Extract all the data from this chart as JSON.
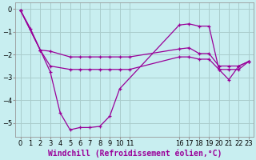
{
  "background_color": "#c8eef0",
  "line_color": "#990099",
  "grid_color": "#aacccc",
  "xlabel": "Windchill (Refroidissement éolien,°C)",
  "xlabel_fontsize": 7,
  "tick_fontsize": 6,
  "xlim": [
    -0.5,
    23.5
  ],
  "ylim": [
    -5.6,
    0.3
  ],
  "yticks": [
    0,
    -1,
    -2,
    -3,
    -4,
    -5
  ],
  "xtick_positions": [
    0,
    1,
    2,
    3,
    4,
    5,
    6,
    7,
    8,
    9,
    10,
    11,
    16,
    17,
    18,
    19,
    20,
    21,
    22,
    23
  ],
  "xtick_labels": [
    "0",
    "1",
    "2",
    "3",
    "4",
    "5",
    "6",
    "7",
    "8",
    "9",
    "10",
    "11",
    "16",
    "17",
    "18",
    "19",
    "20",
    "21",
    "22",
    "23"
  ],
  "line1_x": [
    0,
    1,
    2,
    3,
    4,
    5,
    6,
    7,
    8,
    9,
    10,
    16,
    17,
    18,
    19,
    20,
    21,
    22,
    23
  ],
  "line1_y": [
    -0.05,
    -0.85,
    -1.8,
    -2.75,
    -4.55,
    -5.3,
    -5.2,
    -5.2,
    -5.15,
    -4.7,
    -3.5,
    -0.7,
    -0.65,
    -0.75,
    -0.75,
    -2.65,
    -3.1,
    -2.5,
    -2.3
  ],
  "line2_x": [
    0,
    2,
    3,
    5,
    6,
    7,
    8,
    9,
    10,
    11,
    16,
    17,
    18,
    19,
    20,
    21,
    22,
    23
  ],
  "line2_y": [
    -0.05,
    -1.8,
    -1.85,
    -2.1,
    -2.1,
    -2.1,
    -2.1,
    -2.1,
    -2.1,
    -2.1,
    -1.75,
    -1.7,
    -1.95,
    -1.95,
    -2.5,
    -2.5,
    -2.5,
    -2.3
  ],
  "line3_x": [
    0,
    2,
    3,
    5,
    6,
    7,
    8,
    9,
    10,
    11,
    16,
    17,
    18,
    19,
    20,
    21,
    22,
    23
  ],
  "line3_y": [
    -0.05,
    -1.8,
    -2.5,
    -2.65,
    -2.65,
    -2.65,
    -2.65,
    -2.65,
    -2.65,
    -2.65,
    -2.1,
    -2.1,
    -2.2,
    -2.2,
    -2.65,
    -2.65,
    -2.65,
    -2.3
  ]
}
